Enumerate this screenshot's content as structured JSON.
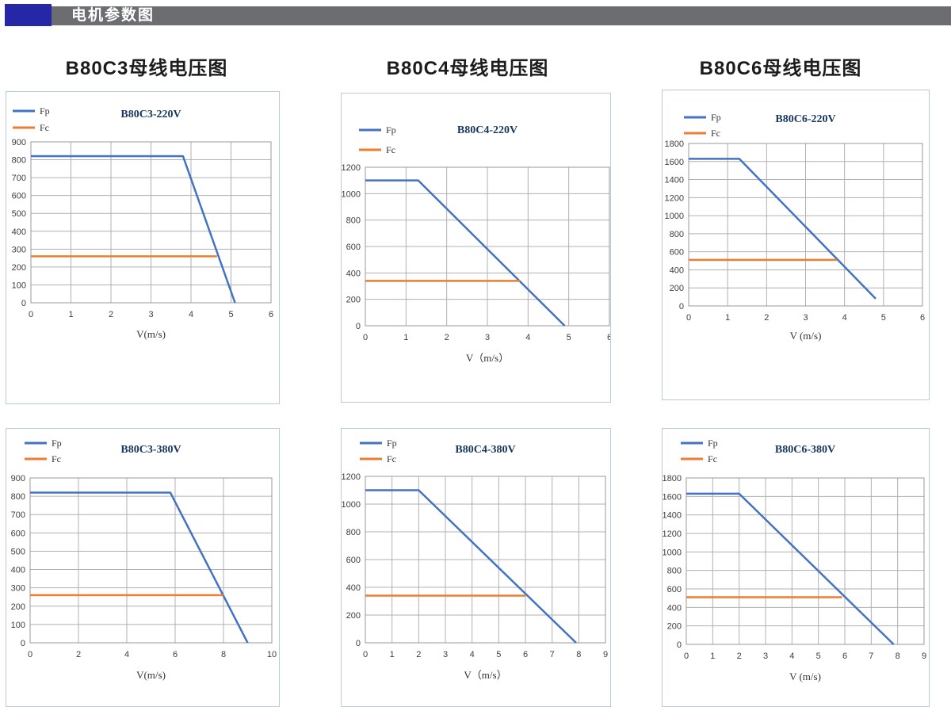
{
  "header": {
    "title": "电机参数图"
  },
  "columns": [
    {
      "title": "B80C3母线电压图"
    },
    {
      "title": "B80C4母线电压图"
    },
    {
      "title": "B80C6母线电压图"
    }
  ],
  "colors": {
    "fp_line": "#4472c4",
    "fc_line": "#ed7d31",
    "header_block": "#2527a6",
    "header_bar": "#6b6d70",
    "grid": "#b0b0b0",
    "plot_border": "#999999",
    "panel_border": "#b9cbe3",
    "chart_title_text": "#17375e"
  },
  "chart_data": [
    {
      "type": "line",
      "title": "B80C3-220V",
      "xlabel": "V(m/s)",
      "xlim": [
        0,
        6
      ],
      "xstep": 1,
      "ylim": [
        0,
        900
      ],
      "ystep": 100,
      "grid": true,
      "legend_position": "top-left",
      "series": [
        {
          "name": "Fp",
          "color": "#4472c4",
          "points": [
            [
              0,
              820
            ],
            [
              3.8,
              820
            ],
            [
              5.1,
              0
            ]
          ]
        },
        {
          "name": "Fc",
          "color": "#ed7d31",
          "points": [
            [
              0,
              260
            ],
            [
              4.65,
              260
            ]
          ]
        }
      ]
    },
    {
      "type": "line",
      "title": "B80C4-220V",
      "xlabel": "V（m/s）",
      "xlim": [
        0,
        6
      ],
      "xstep": 1,
      "ylim": [
        0,
        1200
      ],
      "ystep": 200,
      "grid": true,
      "legend_position": "top-left",
      "series": [
        {
          "name": "Fp",
          "color": "#4472c4",
          "points": [
            [
              0,
              1100
            ],
            [
              1.3,
              1100
            ],
            [
              4.9,
              0
            ]
          ]
        },
        {
          "name": "Fc",
          "color": "#ed7d31",
          "points": [
            [
              0,
              340
            ],
            [
              3.8,
              340
            ]
          ]
        }
      ]
    },
    {
      "type": "line",
      "title": "B80C6-220V",
      "xlabel": "V (m/s)",
      "xlim": [
        0,
        6
      ],
      "xstep": 1,
      "ylim": [
        0,
        1800
      ],
      "ystep": 200,
      "grid": true,
      "legend_position": "top-left",
      "series": [
        {
          "name": "Fp",
          "color": "#4472c4",
          "points": [
            [
              0,
              1630
            ],
            [
              1.3,
              1630
            ],
            [
              4.8,
              80
            ]
          ]
        },
        {
          "name": "Fc",
          "color": "#ed7d31",
          "points": [
            [
              0,
              510
            ],
            [
              3.8,
              510
            ]
          ]
        }
      ]
    },
    {
      "type": "line",
      "title": "B80C3-380V",
      "xlabel": "V(m/s)",
      "xlim": [
        0,
        10
      ],
      "xstep": 2,
      "ylim": [
        0,
        900
      ],
      "ystep": 100,
      "grid": true,
      "legend_position": "top-left",
      "series": [
        {
          "name": "Fp",
          "color": "#4472c4",
          "points": [
            [
              0,
              820
            ],
            [
              5.8,
              820
            ],
            [
              9,
              0
            ]
          ]
        },
        {
          "name": "Fc",
          "color": "#ed7d31",
          "points": [
            [
              0,
              260
            ],
            [
              8,
              260
            ]
          ]
        }
      ]
    },
    {
      "type": "line",
      "title": "B80C4-380V",
      "xlabel": "V（m/s）",
      "xlim": [
        0,
        9
      ],
      "xstep": 1,
      "ylim": [
        0,
        1200
      ],
      "ystep": 200,
      "grid": true,
      "legend_position": "top-left",
      "series": [
        {
          "name": "Fp",
          "color": "#4472c4",
          "points": [
            [
              0,
              1100
            ],
            [
              2,
              1100
            ],
            [
              7.9,
              0
            ]
          ]
        },
        {
          "name": "Fc",
          "color": "#ed7d31",
          "points": [
            [
              0,
              340
            ],
            [
              6,
              340
            ]
          ]
        }
      ]
    },
    {
      "type": "line",
      "title": "B80C6-380V",
      "xlabel": "V (m/s)",
      "xlim": [
        0,
        9
      ],
      "xstep": 1,
      "ylim": [
        0,
        1800
      ],
      "ystep": 200,
      "grid": true,
      "legend_position": "top-left",
      "series": [
        {
          "name": "Fp",
          "color": "#4472c4",
          "points": [
            [
              0,
              1630
            ],
            [
              2,
              1630
            ],
            [
              7.85,
              0
            ]
          ]
        },
        {
          "name": "Fc",
          "color": "#ed7d31",
          "points": [
            [
              0,
              510
            ],
            [
              5.9,
              510
            ]
          ]
        }
      ]
    }
  ]
}
